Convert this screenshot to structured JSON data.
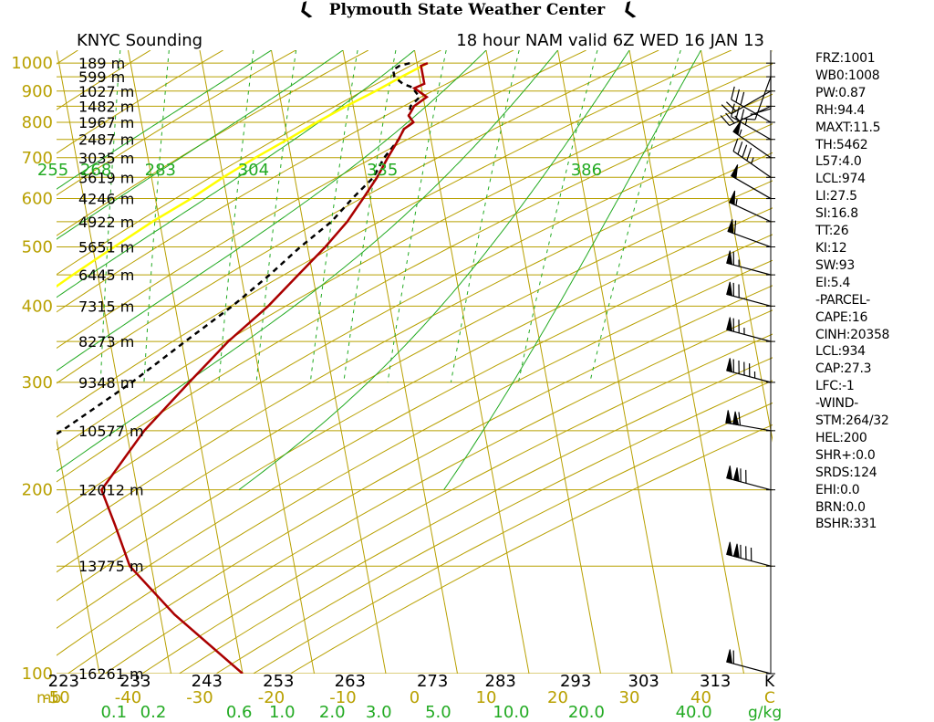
{
  "page_title": "Plymouth State Weather Center",
  "colors": {
    "grid": "#b8a000",
    "mixing": "#22aa22",
    "dry": "#22aa22",
    "temp": "#aa0000",
    "dew": "#000000",
    "parcel": "#ffff00",
    "wind": "#000000"
  },
  "chart_data": {
    "type": "skew-t log-p sounding",
    "station_label": "KNYC Sounding",
    "model_label": "18 hour NAM valid 6Z WED 16 JAN 13",
    "y_unit_label": "mb",
    "x_unit_label": "C",
    "theta_unit_label": "K",
    "mixing_unit_label": "g/kg",
    "pressure_axis": {
      "scale": "log",
      "range": [
        1050,
        100
      ],
      "ticks": [
        1000,
        900,
        800,
        700,
        600,
        500,
        400,
        300,
        200,
        100
      ]
    },
    "temperature_axis": {
      "range": [
        -50,
        50
      ],
      "ticks": [
        -50,
        -40,
        -30,
        -20,
        -10,
        0,
        10,
        20,
        30,
        40
      ]
    },
    "heights": [
      {
        "p": 100,
        "label": "16261 m"
      },
      {
        "p": 150,
        "label": "13775 m"
      },
      {
        "p": 200,
        "label": "12012 m"
      },
      {
        "p": 250,
        "label": "10577 m"
      },
      {
        "p": 300,
        "label": "9348 m"
      },
      {
        "p": 350,
        "label": "8273 m"
      },
      {
        "p": 400,
        "label": "7315 m"
      },
      {
        "p": 450,
        "label": "6445 m"
      },
      {
        "p": 500,
        "label": "5651 m"
      },
      {
        "p": 550,
        "label": "4922 m"
      },
      {
        "p": 600,
        "label": "4246 m"
      },
      {
        "p": 650,
        "label": "3619 m"
      },
      {
        "p": 700,
        "label": "3035 m"
      },
      {
        "p": 750,
        "label": "2487 m"
      },
      {
        "p": 800,
        "label": "1967 m"
      },
      {
        "p": 850,
        "label": "1482 m"
      },
      {
        "p": 900,
        "label": "1027 m"
      },
      {
        "p": 950,
        "label": "599 m"
      },
      {
        "p": 1000,
        "label": "189 m"
      }
    ],
    "isentrope_labels_top": [
      {
        "x": -50.5,
        "label": "255"
      },
      {
        "x": -44.5,
        "label": "268"
      },
      {
        "x": -35.5,
        "label": "283"
      },
      {
        "x": -22.5,
        "label": "304"
      },
      {
        "x": -4.5,
        "label": "335"
      },
      {
        "x": 24,
        "label": "386"
      }
    ],
    "isentrope_labels_bottom": [
      {
        "x": -49,
        "label": "223"
      },
      {
        "x": -39,
        "label": "233"
      },
      {
        "x": -29,
        "label": "243"
      },
      {
        "x": -19,
        "label": "253"
      },
      {
        "x": -9,
        "label": "263"
      },
      {
        "x": 2.5,
        "label": "273"
      },
      {
        "x": 12,
        "label": "283"
      },
      {
        "x": 22.5,
        "label": "293"
      },
      {
        "x": 32,
        "label": "303"
      },
      {
        "x": 42,
        "label": "313"
      }
    ],
    "mixing_ratio_labels": [
      {
        "x": -42,
        "label": "0.1"
      },
      {
        "x": -36.5,
        "label": "0.2"
      },
      {
        "x": -24.5,
        "label": "0.6"
      },
      {
        "x": -18.5,
        "label": "1.0"
      },
      {
        "x": -11.5,
        "label": "2.0"
      },
      {
        "x": -5,
        "label": "3.0"
      },
      {
        "x": 3.3,
        "label": "5.0"
      },
      {
        "x": 13.5,
        "label": "10.0"
      },
      {
        "x": 24,
        "label": "20.0"
      },
      {
        "x": 39,
        "label": "40.0"
      }
    ],
    "temperature_profile": [
      {
        "p": 1000,
        "t": 1.5
      },
      {
        "p": 990,
        "t": 0.5
      },
      {
        "p": 975,
        "t": 0.5
      },
      {
        "p": 950,
        "t": 0.5
      },
      {
        "p": 925,
        "t": 0.5
      },
      {
        "p": 910,
        "t": -1
      },
      {
        "p": 900,
        "t": -0.5
      },
      {
        "p": 880,
        "t": 0.5
      },
      {
        "p": 850,
        "t": -1.5
      },
      {
        "p": 820,
        "t": -2.5
      },
      {
        "p": 800,
        "t": -2
      },
      {
        "p": 780,
        "t": -3.5
      },
      {
        "p": 750,
        "t": -4.5
      },
      {
        "p": 700,
        "t": -6.5
      },
      {
        "p": 650,
        "t": -8.5
      },
      {
        "p": 600,
        "t": -11
      },
      {
        "p": 550,
        "t": -13.8
      },
      {
        "p": 500,
        "t": -17.5
      },
      {
        "p": 450,
        "t": -22
      },
      {
        "p": 400,
        "t": -27
      },
      {
        "p": 350,
        "t": -33.5
      },
      {
        "p": 300,
        "t": -40
      },
      {
        "p": 250,
        "t": -47.5
      },
      {
        "p": 200,
        "t": -55
      },
      {
        "p": 175,
        "t": -54
      },
      {
        "p": 150,
        "t": -53
      },
      {
        "p": 125,
        "t": -48
      },
      {
        "p": 100,
        "t": -40
      }
    ],
    "dewpoint_profile": [
      {
        "p": 1000,
        "t": -1
      },
      {
        "p": 990,
        "t": -2.5
      },
      {
        "p": 975,
        "t": -3.5
      },
      {
        "p": 950,
        "t": -3.5
      },
      {
        "p": 925,
        "t": -2.5
      },
      {
        "p": 910,
        "t": -1
      },
      {
        "p": 900,
        "t": -1
      },
      {
        "p": 880,
        "t": -0.5
      },
      {
        "p": 850,
        "t": -2
      },
      {
        "p": 820,
        "t": -2.5
      },
      {
        "p": 800,
        "t": -2
      },
      {
        "p": 780,
        "t": -3.5
      },
      {
        "p": 750,
        "t": -4.5
      },
      {
        "p": 700,
        "t": -7
      },
      {
        "p": 650,
        "t": -9
      },
      {
        "p": 600,
        "t": -12.5
      },
      {
        "p": 550,
        "t": -16
      },
      {
        "p": 500,
        "t": -21
      },
      {
        "p": 450,
        "t": -26
      },
      {
        "p": 400,
        "t": -32
      },
      {
        "p": 350,
        "t": -39.5
      },
      {
        "p": 300,
        "t": -48
      },
      {
        "p": 250,
        "t": -59
      },
      {
        "p": 200,
        "t": -74
      },
      {
        "p": 175,
        "t": -76
      },
      {
        "p": 150,
        "t": -80
      },
      {
        "p": 125,
        "t": -81
      },
      {
        "p": 100,
        "t": -85
      }
    ],
    "parcel_profile": [
      {
        "p": 1000,
        "t": 1.5
      },
      {
        "p": 950,
        "t": -2.5
      },
      {
        "p": 900,
        "t": -6.5
      },
      {
        "p": 850,
        "t": -11
      },
      {
        "p": 800,
        "t": -15.5
      },
      {
        "p": 750,
        "t": -20
      },
      {
        "p": 700,
        "t": -25
      },
      {
        "p": 650,
        "t": -30
      },
      {
        "p": 600,
        "t": -35
      },
      {
        "p": 550,
        "t": -41
      },
      {
        "p": 500,
        "t": -47
      },
      {
        "p": 450,
        "t": -53.5
      },
      {
        "p": 400,
        "t": -60.5
      },
      {
        "p": 350,
        "t": -68
      },
      {
        "p": 300,
        "t": -76.5
      },
      {
        "p": 250,
        "t": -86
      },
      {
        "p": 200,
        "t": -97
      },
      {
        "p": 150,
        "t": -111
      },
      {
        "p": 100,
        "t": -130
      }
    ],
    "wind_barbs": [
      {
        "p": 100,
        "dir": 285,
        "spd": 60
      },
      {
        "p": 150,
        "dir": 285,
        "spd": 130
      },
      {
        "p": 200,
        "dir": 285,
        "spd": 120
      },
      {
        "p": 250,
        "dir": 280,
        "spd": 110
      },
      {
        "p": 300,
        "dir": 285,
        "spd": 95
      },
      {
        "p": 350,
        "dir": 285,
        "spd": 75
      },
      {
        "p": 400,
        "dir": 285,
        "spd": 70
      },
      {
        "p": 450,
        "dir": 285,
        "spd": 65
      },
      {
        "p": 500,
        "dir": 290,
        "spd": 60
      },
      {
        "p": 550,
        "dir": 295,
        "spd": 55
      },
      {
        "p": 600,
        "dir": 300,
        "spd": 50
      },
      {
        "p": 650,
        "dir": 305,
        "spd": 45
      },
      {
        "p": 700,
        "dir": 305,
        "spd": 55
      },
      {
        "p": 750,
        "dir": 300,
        "spd": 35
      },
      {
        "p": 800,
        "dir": 300,
        "spd": 30
      },
      {
        "p": 850,
        "dir": 245,
        "spd": 25
      },
      {
        "p": 900,
        "dir": 240,
        "spd": 20
      },
      {
        "p": 950,
        "dir": 200,
        "spd": 15
      },
      {
        "p": 1000,
        "dir": 180,
        "spd": 10
      }
    ],
    "indices": [
      "FRZ:1001",
      "WB0:1008",
      "PW:0.87",
      "RH:94.4",
      "MAXT:11.5",
      "TH:5462",
      "L57:4.0",
      "LCL:974",
      "LI:27.5",
      "SI:16.8",
      "TT:26",
      "KI:12",
      "SW:93",
      "EI:5.4",
      "-PARCEL-",
      "CAPE:16",
      "CINH:20358",
      "LCL:934",
      "CAP:27.3",
      "LFC:-1",
      "-WIND-",
      "STM:264/32",
      "HEL:200",
      "SHR+:0.0",
      "SRDS:124",
      "EHI:0.0",
      "BRN:0.0",
      "BSHR:331"
    ]
  }
}
